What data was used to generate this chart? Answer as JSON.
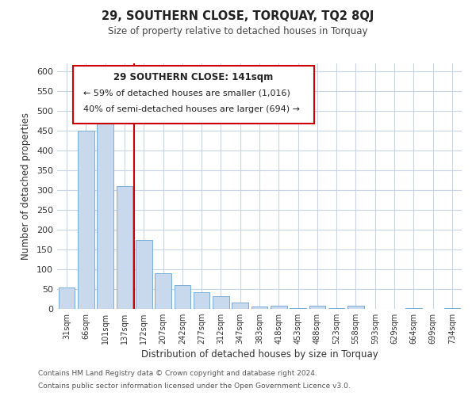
{
  "title": "29, SOUTHERN CLOSE, TORQUAY, TQ2 8QJ",
  "subtitle": "Size of property relative to detached houses in Torquay",
  "xlabel": "Distribution of detached houses by size in Torquay",
  "ylabel": "Number of detached properties",
  "bar_color": "#c8d8ed",
  "bar_edge_color": "#7aadd4",
  "categories": [
    "31sqm",
    "66sqm",
    "101sqm",
    "137sqm",
    "172sqm",
    "207sqm",
    "242sqm",
    "277sqm",
    "312sqm",
    "347sqm",
    "383sqm",
    "418sqm",
    "453sqm",
    "488sqm",
    "523sqm",
    "558sqm",
    "593sqm",
    "629sqm",
    "664sqm",
    "699sqm",
    "734sqm"
  ],
  "values": [
    55,
    450,
    470,
    310,
    175,
    90,
    60,
    43,
    33,
    16,
    7,
    8,
    2,
    8,
    2,
    9,
    1,
    0,
    3,
    0,
    2
  ],
  "ylim": [
    0,
    620
  ],
  "yticks": [
    0,
    50,
    100,
    150,
    200,
    250,
    300,
    350,
    400,
    450,
    500,
    550,
    600
  ],
  "annotation_title": "29 SOUTHERN CLOSE: 141sqm",
  "annotation_line1": "← 59% of detached houses are smaller (1,016)",
  "annotation_line2": "40% of semi-detached houses are larger (694) →",
  "property_line_x": 3.5,
  "footer1": "Contains HM Land Registry data © Crown copyright and database right 2024.",
  "footer2": "Contains public sector information licensed under the Open Government Licence v3.0.",
  "background_color": "#ffffff",
  "grid_color": "#c8d4e8"
}
